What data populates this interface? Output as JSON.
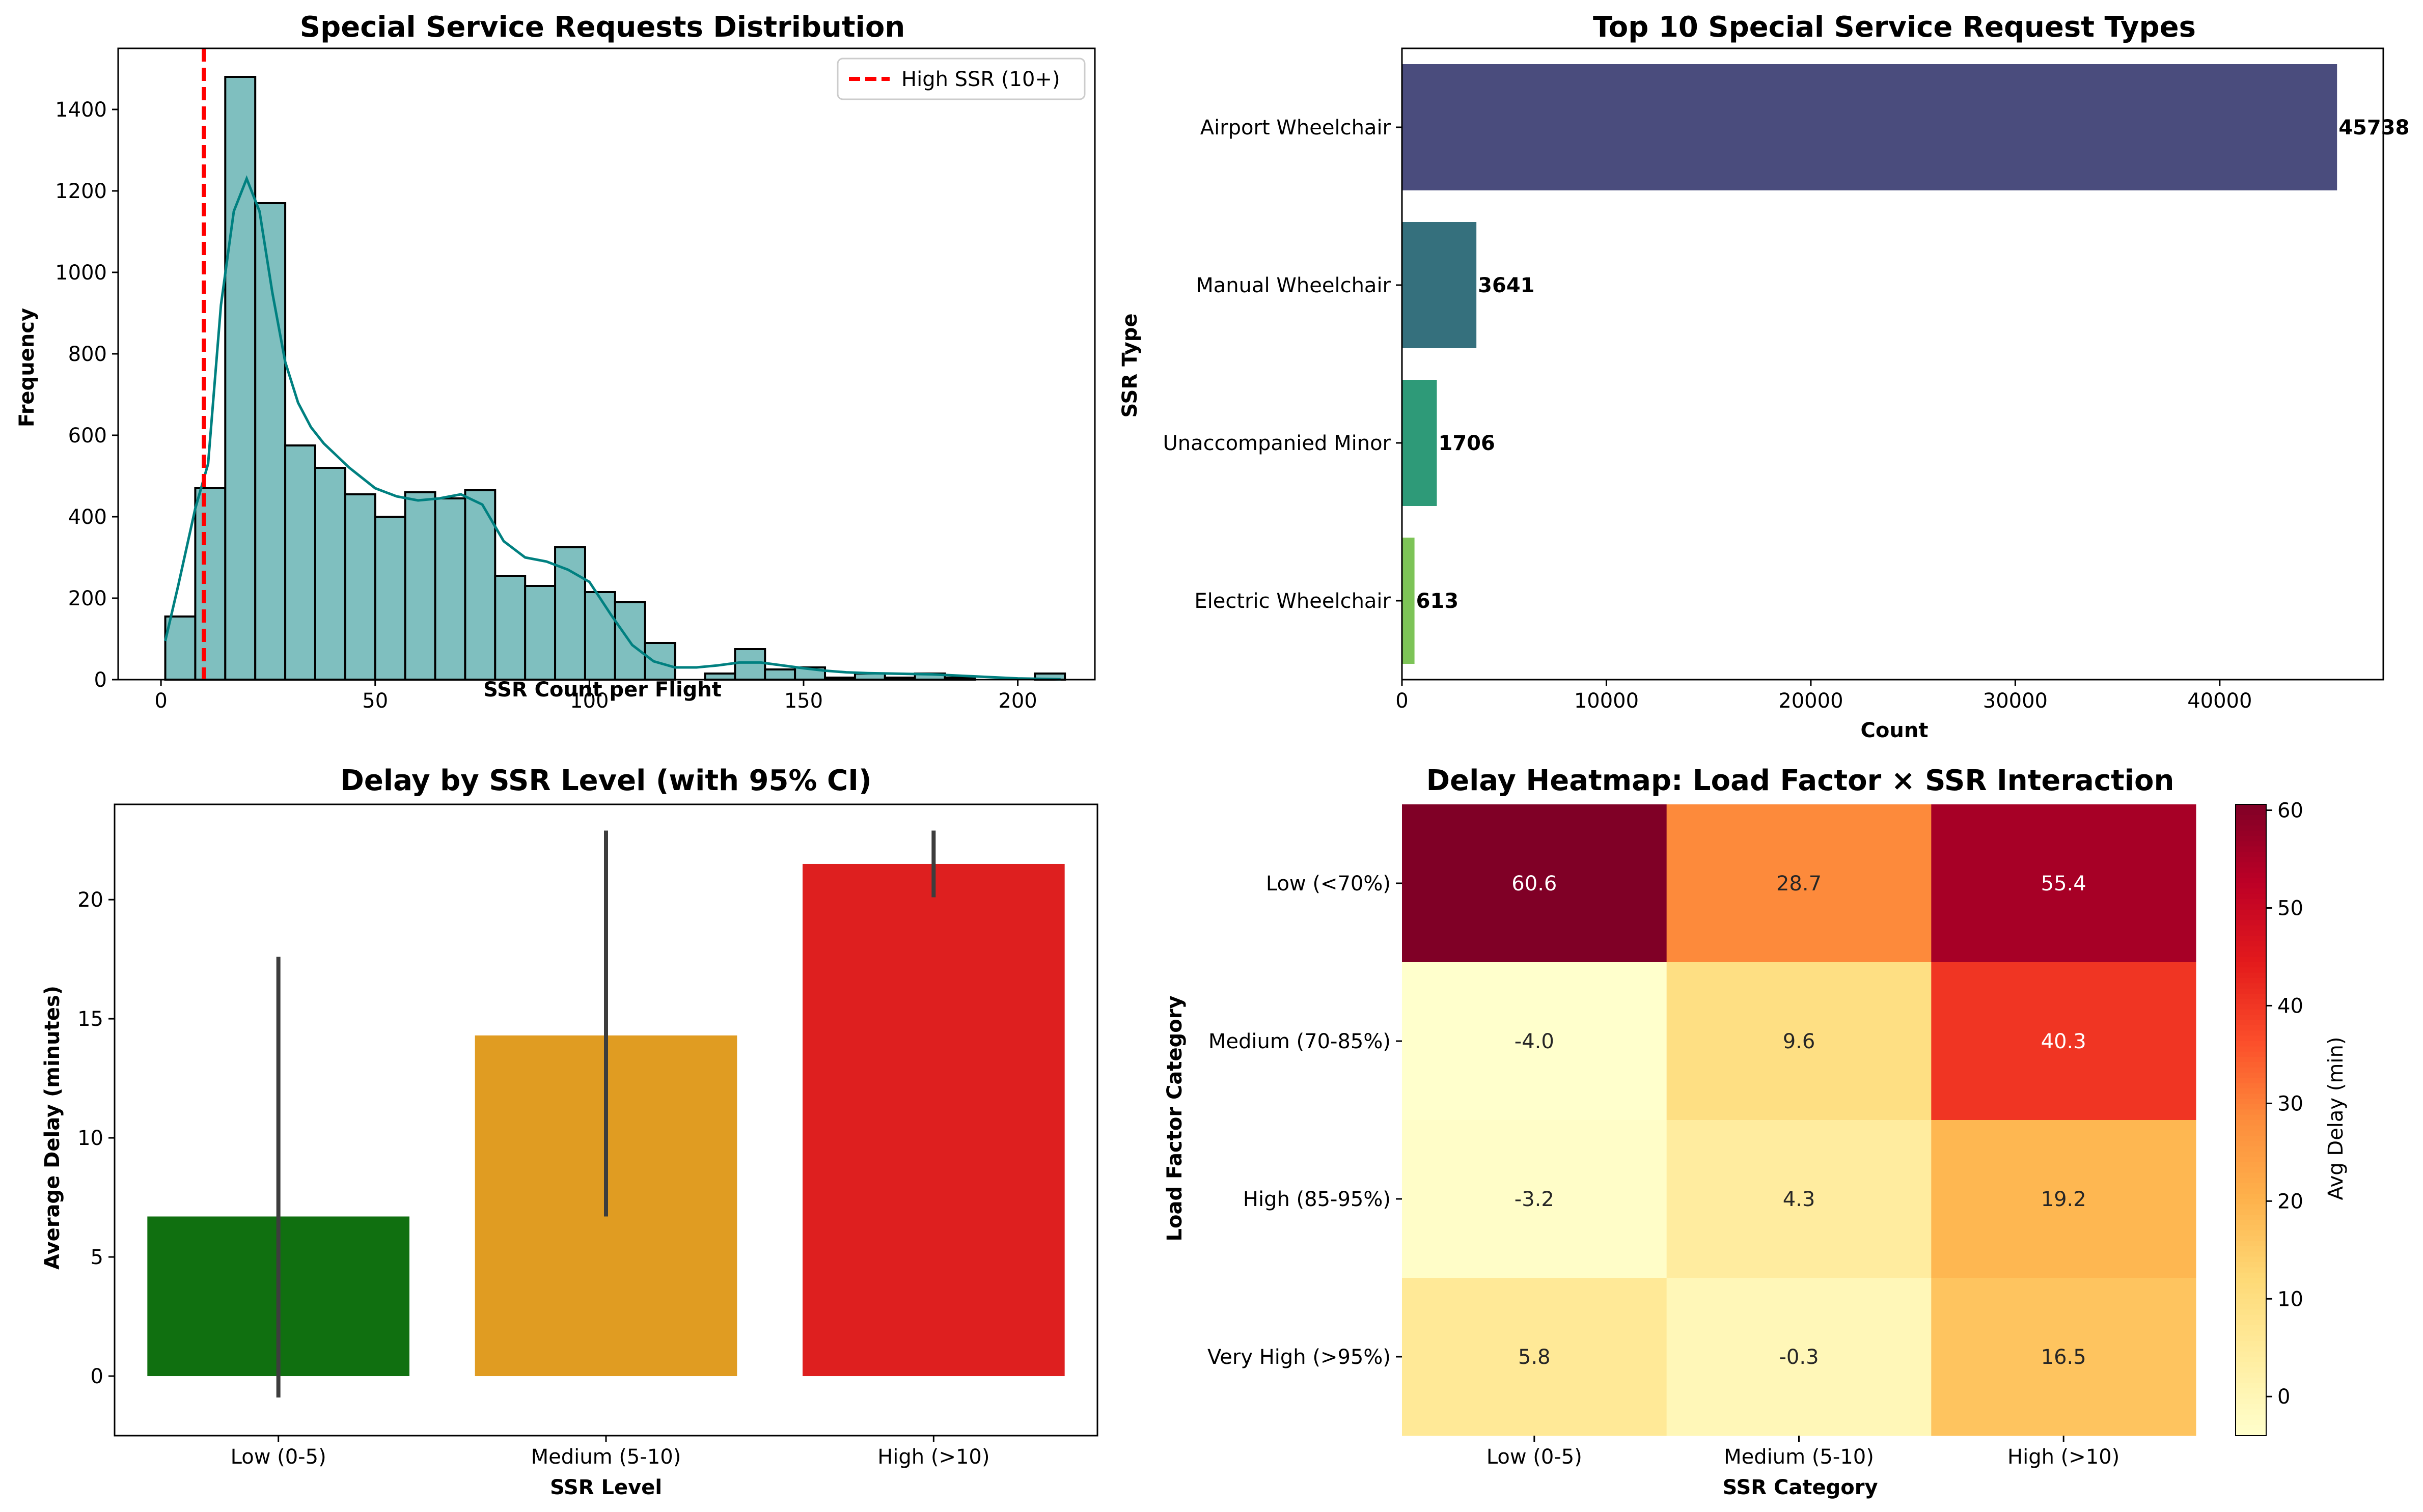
{
  "chart_data": [
    {
      "type": "histogram",
      "title": "Special Service Requests Distribution",
      "xlabel": "SSR Count per Flight",
      "ylabel": "Frequency",
      "xlim": [
        -10,
        218
      ],
      "ylim": [
        0,
        1550
      ],
      "xticks": [
        0,
        50,
        100,
        150,
        200
      ],
      "yticks": [
        0,
        200,
        400,
        600,
        800,
        1000,
        1200,
        1400
      ],
      "bin_start": 1,
      "bin_width": 7,
      "frequencies": [
        155,
        470,
        1480,
        1170,
        575,
        520,
        455,
        400,
        460,
        445,
        465,
        255,
        230,
        325,
        215,
        190,
        90,
        0,
        15,
        75,
        25,
        30,
        5,
        15,
        5,
        15,
        5,
        0,
        0,
        15
      ],
      "bar_color": "#7fbfbf",
      "kde_color": "#008080",
      "kde": {
        "x": [
          1,
          4,
          8,
          11,
          14,
          17,
          20,
          23,
          26,
          29,
          32,
          35,
          38,
          41,
          44,
          47,
          50,
          55,
          60,
          65,
          70,
          75,
          80,
          85,
          90,
          95,
          100,
          105,
          110,
          115,
          120,
          125,
          130,
          135,
          140,
          145,
          150,
          155,
          160,
          165,
          170,
          180,
          190,
          200,
          210
        ],
        "y": [
          95,
          230,
          420,
          530,
          920,
          1150,
          1230,
          1150,
          950,
          780,
          680,
          620,
          580,
          550,
          520,
          495,
          470,
          450,
          440,
          445,
          455,
          430,
          340,
          300,
          290,
          270,
          240,
          160,
          85,
          45,
          30,
          30,
          35,
          42,
          42,
          35,
          28,
          22,
          18,
          16,
          15,
          13,
          8,
          3,
          1
        ]
      },
      "reference_line": {
        "x": 10,
        "label": "High SSR (10+)",
        "color": "#ff0000"
      },
      "legend": {
        "position": "top-right",
        "entries": [
          "High SSR (10+)"
        ]
      }
    },
    {
      "type": "bar",
      "orientation": "horizontal",
      "title": "Top 10 Special Service Request Types",
      "xlabel": "Count",
      "ylabel": "SSR Type",
      "xlim": [
        0,
        48000
      ],
      "xticks": [
        0,
        10000,
        20000,
        30000,
        40000
      ],
      "categories": [
        "Airport Wheelchair",
        "Manual Wheelchair",
        "Unaccompanied Minor",
        "Electric Wheelchair"
      ],
      "values": [
        45738,
        3641,
        1706,
        613
      ],
      "colors": [
        "#4a4c7d",
        "#35707d",
        "#2e9a78",
        "#7dc457"
      ]
    },
    {
      "type": "bar",
      "title": "Delay by SSR Level (with 95% CI)",
      "xlabel": "SSR Level",
      "ylabel": "Average Delay (minutes)",
      "ylim": [
        -2.5,
        24
      ],
      "yticks": [
        0,
        5,
        10,
        15,
        20
      ],
      "categories": [
        "Low (0-5)",
        "Medium (5-10)",
        "High (>10)"
      ],
      "values": [
        6.7,
        14.3,
        21.5
      ],
      "ci_low": [
        -0.9,
        6.7,
        20.1
      ],
      "ci_high": [
        17.6,
        22.9,
        22.9
      ],
      "colors": [
        "#107010",
        "#e09c22",
        "#de1f1f"
      ]
    },
    {
      "type": "heatmap",
      "title": "Delay Heatmap: Load Factor × SSR Interaction",
      "xlabel": "SSR Category",
      "ylabel": "Load Factor Category",
      "x_categories": [
        "Low (0-5)",
        "Medium (5-10)",
        "High (>10)"
      ],
      "y_categories": [
        "Low (<70%)",
        "Medium (70-85%)",
        "High (85-95%)",
        "Very High (>95%)"
      ],
      "values": [
        [
          60.6,
          28.7,
          55.4
        ],
        [
          -4.0,
          9.6,
          40.3
        ],
        [
          -3.2,
          4.3,
          19.2
        ],
        [
          5.8,
          -0.3,
          16.5
        ]
      ],
      "value_labels": [
        [
          "60.6",
          "28.7",
          "55.4"
        ],
        [
          "-4.0",
          "9.6",
          "40.3"
        ],
        [
          "-3.2",
          "4.3",
          "19.2"
        ],
        [
          "5.8",
          "-0.3",
          "16.5"
        ]
      ],
      "colorbar": {
        "label": "Avg Delay (min)",
        "min": -4.0,
        "max": 60.6,
        "ticks": [
          0,
          10,
          20,
          30,
          40,
          50,
          60
        ],
        "colormap": "YlOrRd"
      }
    }
  ]
}
